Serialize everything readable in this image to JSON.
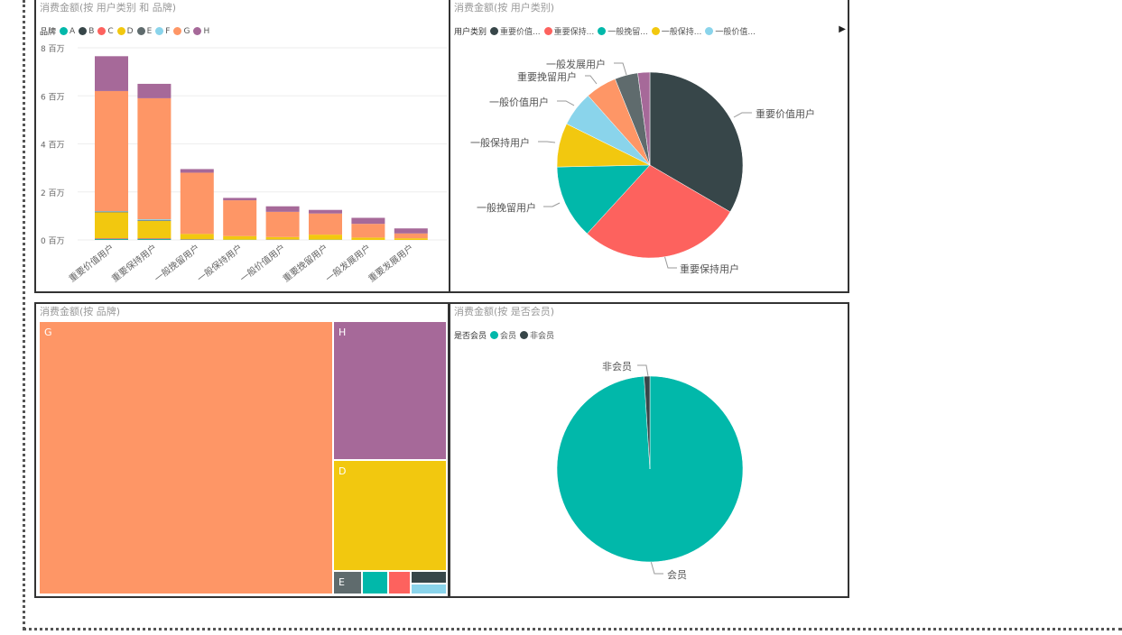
{
  "colors": {
    "A": "#01B8AA",
    "B": "#374649",
    "C": "#FD625E",
    "D": "#F2C80F",
    "E": "#5F6B6D",
    "F": "#8AD4EB",
    "G": "#FE9666",
    "H": "#A66999"
  },
  "bar_panel": {
    "title": "消费金额(按 用户类别 和 品牌)",
    "legend_title": "品牌"
  },
  "pie_panel": {
    "title": "消费金额(按 用户类别)",
    "legend_title": "用户类别",
    "legend_items": [
      "重要价值...",
      "重要保持...",
      "一般挽留...",
      "一般保持...",
      "一般价值..."
    ],
    "legend_next_icon": "triangle-right-icon"
  },
  "treemap_panel": {
    "title": "消费金额(按 品牌)"
  },
  "member_panel": {
    "title": "消费金额(按 是否会员)",
    "legend_title": "是否会员",
    "legend_items": [
      "会员",
      "非会员"
    ]
  },
  "chart_data": [
    {
      "type": "bar",
      "stacked": true,
      "title": "消费金额(按 用户类别 和 品牌)",
      "ylabel": "",
      "xlabel": "",
      "ylim": [
        0,
        8
      ],
      "yticks": [
        "0 百万",
        "2 百万",
        "4 百万",
        "6 百万",
        "8 百万"
      ],
      "categories": [
        "重要价值用户",
        "重要保持用户",
        "一般挽留用户",
        "一般保持用户",
        "一般价值用户",
        "重要挽留用户",
        "一般发展用户",
        "重要发展用户"
      ],
      "series": [
        {
          "name": "A",
          "values": [
            0.03,
            0.03,
            0.01,
            0.01,
            0.01,
            0.01,
            0.0,
            0.0
          ]
        },
        {
          "name": "B",
          "values": [
            0.02,
            0.02,
            0.01,
            0.0,
            0.0,
            0.0,
            0.0,
            0.0
          ]
        },
        {
          "name": "C",
          "values": [
            0.02,
            0.02,
            0.01,
            0.0,
            0.01,
            0.0,
            0.0,
            0.0
          ]
        },
        {
          "name": "D",
          "values": [
            1.08,
            0.72,
            0.22,
            0.15,
            0.1,
            0.21,
            0.1,
            0.07
          ]
        },
        {
          "name": "E",
          "values": [
            0.03,
            0.03,
            0.0,
            0.0,
            0.0,
            0.0,
            0.0,
            0.0
          ]
        },
        {
          "name": "F",
          "values": [
            0.02,
            0.04,
            0.0,
            0.0,
            0.0,
            0.0,
            0.0,
            0.0
          ]
        },
        {
          "name": "G",
          "values": [
            5.0,
            5.04,
            2.55,
            1.49,
            1.05,
            0.88,
            0.57,
            0.2
          ]
        },
        {
          "name": "H",
          "values": [
            1.45,
            0.6,
            0.15,
            0.1,
            0.23,
            0.15,
            0.25,
            0.21
          ]
        }
      ]
    },
    {
      "type": "pie",
      "title": "消费金额(按 用户类别)",
      "labels": [
        "重要价值用户",
        "重要保持用户",
        "一般挽留用户",
        "一般保持用户",
        "一般价值用户",
        "重要挽留用户",
        "一般发展用户",
        "重要发展用户"
      ],
      "values": [
        7.65,
        6.5,
        2.95,
        1.75,
        1.4,
        1.25,
        0.92,
        0.48
      ],
      "colors": [
        "#374649",
        "#FD625E",
        "#01B8AA",
        "#F2C80F",
        "#8AD4EB",
        "#FE9666",
        "#5F6B6D",
        "#A66999"
      ]
    },
    {
      "type": "treemap",
      "title": "消费金额(按 品牌)",
      "labels": [
        "G",
        "H",
        "D",
        "E",
        "A",
        "C",
        "B",
        "F"
      ],
      "values": [
        16.8,
        3.2,
        2.7,
        0.2,
        0.18,
        0.16,
        0.12,
        0.12
      ]
    },
    {
      "type": "pie",
      "title": "消费金额(按 是否会员)",
      "labels": [
        "会员",
        "非会员"
      ],
      "values": [
        99,
        1
      ],
      "colors": [
        "#01B8AA",
        "#374649"
      ]
    }
  ]
}
